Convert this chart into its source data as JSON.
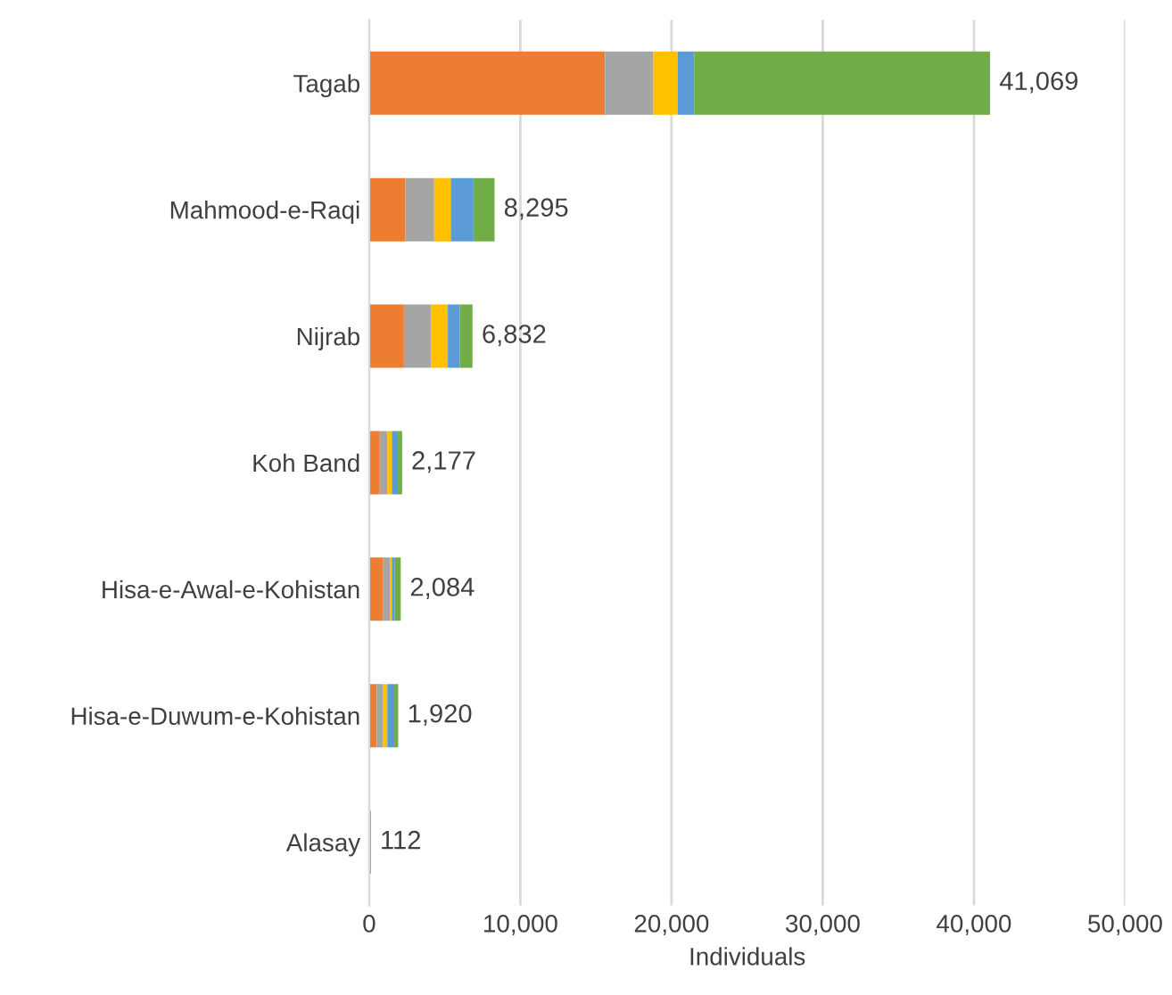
{
  "chart_data": {
    "type": "bar",
    "orientation": "horizontal",
    "stacked": true,
    "categories": [
      "Tagab",
      "Mahmood-e-Raqi",
      "Nijrab",
      "Koh Band",
      "Hisa-e-Awal-e-Kohistan",
      "Hisa-e-Duwum-e-Kohistan",
      "Alasay"
    ],
    "series": [
      {
        "color": "#ed7d31",
        "values": [
          15600,
          2400,
          2300,
          700,
          900,
          500,
          112
        ]
      },
      {
        "color": "#a5a5a5",
        "values": [
          3200,
          1900,
          1800,
          500,
          500,
          400,
          0
        ]
      },
      {
        "color": "#ffc000",
        "values": [
          1600,
          1100,
          1100,
          300,
          100,
          300,
          0
        ]
      },
      {
        "color": "#5b9bd5",
        "values": [
          1100,
          1500,
          800,
          400,
          200,
          400,
          0
        ]
      },
      {
        "color": "#70ad47",
        "values": [
          19569,
          1395,
          832,
          277,
          384,
          320,
          0
        ]
      }
    ],
    "totals": [
      "41,069",
      "8,295",
      "6,832",
      "2,177",
      "2,084",
      "1,920",
      "112"
    ],
    "xlabel": "Individuals",
    "xlim": [
      0,
      50000
    ],
    "xticks": [
      0,
      {
        "value": 10000,
        "label": "10,000"
      },
      {
        "value": 20000,
        "label": "20,000"
      },
      {
        "value": 30000,
        "label": "30,000"
      },
      {
        "value": 40000,
        "label": "40,000"
      },
      {
        "value": 50000,
        "label": "50,000"
      }
    ],
    "grid": "x",
    "legend": false
  }
}
